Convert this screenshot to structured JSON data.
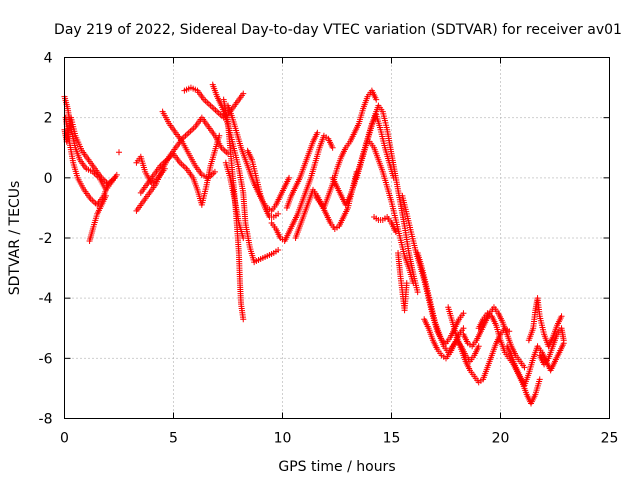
{
  "chart_data": {
    "type": "scatter",
    "title": "Day 219 of 2022, Sidereal Day-to-day VTEC variation (SDTVAR) for receiver av01",
    "xlabel": "GPS time / hours",
    "ylabel": "SDTVAR / TECUs",
    "xlim": [
      0,
      25
    ],
    "ylim": [
      -8,
      4
    ],
    "xticks": [
      0,
      5,
      10,
      15,
      20,
      25
    ],
    "yticks": [
      -8,
      -6,
      -4,
      -2,
      0,
      2,
      4
    ],
    "xtick_labels": [
      "0",
      "5",
      "10",
      "15",
      "20",
      "25"
    ],
    "ytick_labels": [
      "-8",
      "-6",
      "-4",
      "-2",
      "0",
      "2",
      "4"
    ],
    "grid": true,
    "marker": "plus",
    "color": "#ff0000",
    "tracks": [
      [
        [
          0.0,
          2.7
        ],
        [
          0.15,
          2.3
        ],
        [
          0.3,
          1.6
        ],
        [
          0.5,
          1.0
        ],
        [
          0.7,
          0.6
        ],
        [
          1.0,
          0.3
        ],
        [
          1.3,
          0.2
        ],
        [
          1.6,
          0.0
        ],
        [
          1.9,
          -0.4
        ],
        [
          2.1,
          -0.2
        ],
        [
          2.4,
          0.1
        ]
      ],
      [
        [
          0.05,
          2.0
        ],
        [
          0.2,
          1.3
        ],
        [
          0.4,
          0.5
        ],
        [
          0.6,
          0.0
        ],
        [
          0.9,
          -0.4
        ],
        [
          1.2,
          -0.7
        ],
        [
          1.5,
          -0.9
        ],
        [
          1.8,
          -0.6
        ],
        [
          2.0,
          -0.2
        ],
        [
          2.3,
          0.0
        ]
      ],
      [
        [
          0.0,
          1.6
        ],
        [
          0.1,
          1.2
        ],
        [
          0.3,
          2.0
        ],
        [
          0.5,
          1.4
        ],
        [
          0.8,
          0.9
        ],
        [
          1.1,
          0.6
        ],
        [
          1.4,
          0.3
        ],
        [
          1.7,
          0.0
        ],
        [
          2.0,
          -0.2
        ]
      ],
      [
        [
          1.15,
          -2.1
        ],
        [
          1.3,
          -1.7
        ],
        [
          1.5,
          -1.2
        ],
        [
          1.7,
          -0.9
        ],
        [
          1.9,
          -0.6
        ]
      ],
      [
        [
          3.3,
          -1.1
        ],
        [
          3.6,
          -0.8
        ],
        [
          3.9,
          -0.5
        ],
        [
          4.2,
          -0.2
        ],
        [
          4.5,
          0.3
        ],
        [
          4.8,
          0.7
        ],
        [
          5.1,
          1.0
        ],
        [
          5.4,
          1.3
        ],
        [
          5.7,
          1.5
        ],
        [
          6.0,
          1.7
        ],
        [
          6.3,
          2.0
        ],
        [
          6.6,
          1.7
        ],
        [
          6.9,
          1.4
        ],
        [
          7.2,
          1.0
        ],
        [
          7.5,
          0.8
        ]
      ],
      [
        [
          3.5,
          -0.5
        ],
        [
          3.8,
          -0.2
        ],
        [
          4.1,
          0.1
        ],
        [
          4.4,
          0.4
        ],
        [
          4.7,
          0.6
        ],
        [
          5.0,
          0.8
        ],
        [
          5.3,
          0.5
        ],
        [
          5.6,
          0.3
        ],
        [
          5.9,
          0.0
        ],
        [
          6.1,
          -0.4
        ],
        [
          6.3,
          -0.9
        ],
        [
          6.5,
          -0.3
        ],
        [
          6.7,
          0.4
        ],
        [
          6.9,
          0.9
        ],
        [
          7.1,
          1.4
        ]
      ],
      [
        [
          3.3,
          0.5
        ],
        [
          3.5,
          0.7
        ],
        [
          3.7,
          0.2
        ],
        [
          4.0,
          -0.2
        ],
        [
          4.3,
          0.0
        ],
        [
          4.6,
          0.3
        ]
      ],
      [
        [
          4.5,
          2.2
        ],
        [
          4.8,
          1.8
        ],
        [
          5.1,
          1.5
        ],
        [
          5.4,
          1.2
        ],
        [
          5.7,
          0.8
        ],
        [
          6.0,
          0.4
        ],
        [
          6.3,
          0.1
        ],
        [
          6.6,
          0.0
        ],
        [
          6.9,
          0.2
        ]
      ],
      [
        [
          5.5,
          2.9
        ],
        [
          5.8,
          3.0
        ],
        [
          6.1,
          2.9
        ],
        [
          6.4,
          2.6
        ],
        [
          6.7,
          2.4
        ],
        [
          7.0,
          2.2
        ],
        [
          7.3,
          2.0
        ],
        [
          7.6,
          2.2
        ],
        [
          7.9,
          2.5
        ],
        [
          8.2,
          2.8
        ]
      ],
      [
        [
          6.8,
          3.1
        ],
        [
          7.0,
          2.7
        ],
        [
          7.2,
          2.4
        ],
        [
          7.4,
          2.0
        ],
        [
          7.6,
          1.5
        ],
        [
          7.8,
          0.9
        ],
        [
          8.0,
          0.3
        ],
        [
          8.2,
          -0.5
        ],
        [
          8.3,
          -1.5
        ],
        [
          8.5,
          -2.3
        ],
        [
          8.7,
          -2.8
        ],
        [
          9.0,
          -2.7
        ],
        [
          9.3,
          -2.6
        ],
        [
          9.6,
          -2.5
        ],
        [
          9.8,
          -2.4
        ]
      ],
      [
        [
          7.3,
          2.6
        ],
        [
          7.5,
          1.8
        ],
        [
          7.6,
          1.0
        ],
        [
          7.7,
          0.2
        ],
        [
          7.8,
          -0.6
        ],
        [
          7.9,
          -1.5
        ],
        [
          8.0,
          -2.5
        ],
        [
          8.05,
          -3.5
        ],
        [
          8.1,
          -4.2
        ],
        [
          8.2,
          -4.7
        ]
      ],
      [
        [
          7.4,
          0.5
        ],
        [
          7.6,
          0.0
        ],
        [
          7.8,
          -0.7
        ],
        [
          8.0,
          -1.5
        ],
        [
          8.2,
          -2.0
        ]
      ],
      [
        [
          7.5,
          2.4
        ],
        [
          7.7,
          2.0
        ],
        [
          7.9,
          1.5
        ],
        [
          8.1,
          1.0
        ],
        [
          8.3,
          0.6
        ],
        [
          8.5,
          0.2
        ],
        [
          8.7,
          -0.2
        ],
        [
          8.9,
          -0.5
        ],
        [
          9.1,
          -0.8
        ],
        [
          9.3,
          -1.0
        ],
        [
          9.5,
          -1.1
        ],
        [
          9.7,
          -0.9
        ],
        [
          9.9,
          -0.6
        ],
        [
          10.1,
          -0.3
        ],
        [
          10.3,
          0.0
        ]
      ],
      [
        [
          8.4,
          0.9
        ],
        [
          8.6,
          0.6
        ],
        [
          8.8,
          0.0
        ],
        [
          9.0,
          -0.6
        ],
        [
          9.2,
          -1.0
        ],
        [
          9.4,
          -1.3
        ],
        [
          9.6,
          -1.3
        ],
        [
          9.8,
          -1.2
        ]
      ],
      [
        [
          9.5,
          -1.5
        ],
        [
          9.7,
          -1.7
        ],
        [
          9.9,
          -2.0
        ],
        [
          10.1,
          -2.1
        ],
        [
          10.3,
          -1.8
        ],
        [
          10.5,
          -1.5
        ],
        [
          10.7,
          -1.2
        ],
        [
          10.9,
          -0.8
        ],
        [
          11.1,
          -0.4
        ],
        [
          11.3,
          0.0
        ],
        [
          11.5,
          0.5
        ],
        [
          11.7,
          1.0
        ],
        [
          11.9,
          1.4
        ],
        [
          12.1,
          1.3
        ],
        [
          12.3,
          1.0
        ]
      ],
      [
        [
          10.2,
          -1.0
        ],
        [
          10.4,
          -0.6
        ],
        [
          10.6,
          -0.3
        ],
        [
          10.8,
          0.0
        ],
        [
          11.0,
          0.4
        ],
        [
          11.2,
          0.8
        ],
        [
          11.4,
          1.2
        ],
        [
          11.6,
          1.5
        ]
      ],
      [
        [
          10.6,
          -2.0
        ],
        [
          10.8,
          -1.6
        ],
        [
          11.0,
          -1.2
        ],
        [
          11.2,
          -0.8
        ],
        [
          11.4,
          -0.4
        ],
        [
          11.6,
          -0.6
        ],
        [
          11.8,
          -0.9
        ],
        [
          12.0,
          -1.2
        ],
        [
          12.2,
          -1.5
        ],
        [
          12.4,
          -1.7
        ],
        [
          12.6,
          -1.6
        ],
        [
          12.8,
          -1.3
        ],
        [
          13.0,
          -1.0
        ],
        [
          13.2,
          -0.4
        ],
        [
          13.4,
          0.2
        ]
      ],
      [
        [
          11.5,
          -0.6
        ],
        [
          11.7,
          -0.8
        ],
        [
          11.9,
          -1.0
        ],
        [
          12.1,
          -0.6
        ],
        [
          12.3,
          -0.2
        ],
        [
          12.5,
          0.3
        ],
        [
          12.7,
          0.7
        ],
        [
          12.9,
          1.0
        ],
        [
          13.1,
          1.2
        ],
        [
          13.3,
          1.5
        ],
        [
          13.5,
          1.8
        ],
        [
          13.7,
          2.3
        ],
        [
          13.9,
          2.7
        ],
        [
          14.1,
          2.9
        ],
        [
          14.3,
          2.6
        ]
      ],
      [
        [
          12.3,
          0.0
        ],
        [
          12.5,
          -0.3
        ],
        [
          12.7,
          -0.6
        ],
        [
          12.9,
          -0.9
        ],
        [
          13.1,
          -0.6
        ],
        [
          13.3,
          -0.2
        ],
        [
          13.5,
          0.3
        ],
        [
          13.7,
          0.8
        ],
        [
          13.9,
          1.3
        ],
        [
          14.1,
          1.8
        ],
        [
          14.3,
          2.1
        ],
        [
          14.5,
          1.6
        ],
        [
          14.7,
          1.0
        ],
        [
          14.9,
          0.5
        ],
        [
          15.1,
          0.0
        ]
      ],
      [
        [
          13.4,
          0.0
        ],
        [
          13.6,
          0.5
        ],
        [
          13.8,
          1.0
        ],
        [
          14.0,
          1.5
        ],
        [
          14.2,
          2.0
        ],
        [
          14.4,
          2.4
        ],
        [
          14.6,
          2.2
        ],
        [
          14.8,
          1.6
        ],
        [
          15.0,
          0.8
        ],
        [
          15.2,
          0.0
        ],
        [
          15.4,
          -0.8
        ],
        [
          15.6,
          -1.6
        ],
        [
          15.8,
          -2.5
        ],
        [
          16.0,
          -3.2
        ],
        [
          16.2,
          -3.8
        ]
      ],
      [
        [
          14.0,
          1.2
        ],
        [
          14.2,
          1.0
        ],
        [
          14.4,
          0.6
        ],
        [
          14.6,
          0.2
        ],
        [
          14.8,
          -0.3
        ],
        [
          15.0,
          -0.8
        ],
        [
          15.2,
          -1.4
        ],
        [
          15.4,
          -2.0
        ],
        [
          15.6,
          -2.6
        ],
        [
          15.8,
          -3.0
        ],
        [
          16.0,
          -3.5
        ]
      ],
      [
        [
          14.2,
          -1.3
        ],
        [
          14.4,
          -1.4
        ],
        [
          14.6,
          -1.4
        ],
        [
          14.8,
          -1.3
        ],
        [
          15.0,
          -1.5
        ],
        [
          15.2,
          -1.8
        ]
      ],
      [
        [
          15.3,
          -2.5
        ],
        [
          15.4,
          -3.2
        ],
        [
          15.5,
          -3.8
        ],
        [
          15.6,
          -4.4
        ],
        [
          15.7,
          -3.5
        ]
      ],
      [
        [
          15.5,
          -0.6
        ],
        [
          15.7,
          -1.2
        ],
        [
          15.9,
          -1.8
        ],
        [
          16.1,
          -2.4
        ],
        [
          16.3,
          -2.9
        ],
        [
          16.5,
          -3.4
        ],
        [
          16.7,
          -4.0
        ],
        [
          16.9,
          -4.6
        ],
        [
          17.1,
          -5.1
        ],
        [
          17.3,
          -5.4
        ],
        [
          17.5,
          -5.5
        ],
        [
          17.7,
          -5.3
        ],
        [
          17.9,
          -5.0
        ],
        [
          18.1,
          -4.7
        ],
        [
          18.3,
          -4.5
        ]
      ],
      [
        [
          16.2,
          -2.5
        ],
        [
          16.4,
          -3.0
        ],
        [
          16.6,
          -3.6
        ],
        [
          16.8,
          -4.2
        ],
        [
          17.0,
          -4.8
        ],
        [
          17.2,
          -5.2
        ],
        [
          17.4,
          -5.6
        ],
        [
          17.6,
          -5.8
        ],
        [
          17.8,
          -5.6
        ],
        [
          18.0,
          -5.4
        ],
        [
          18.2,
          -5.6
        ],
        [
          18.4,
          -5.9
        ],
        [
          18.6,
          -6.1
        ],
        [
          18.8,
          -5.9
        ],
        [
          19.0,
          -5.6
        ]
      ],
      [
        [
          16.5,
          -4.7
        ],
        [
          16.7,
          -5.0
        ],
        [
          16.9,
          -5.4
        ],
        [
          17.1,
          -5.7
        ],
        [
          17.3,
          -5.9
        ],
        [
          17.5,
          -6.0
        ],
        [
          17.7,
          -5.8
        ],
        [
          17.9,
          -5.5
        ],
        [
          18.1,
          -5.2
        ],
        [
          18.3,
          -5.0
        ]
      ],
      [
        [
          17.6,
          -4.3
        ],
        [
          17.8,
          -4.8
        ],
        [
          18.0,
          -5.3
        ],
        [
          18.2,
          -5.7
        ],
        [
          18.4,
          -6.1
        ],
        [
          18.6,
          -6.4
        ],
        [
          18.8,
          -6.6
        ],
        [
          19.0,
          -6.8
        ],
        [
          19.2,
          -6.7
        ],
        [
          19.4,
          -6.3
        ],
        [
          19.6,
          -5.9
        ],
        [
          19.8,
          -5.5
        ],
        [
          20.0,
          -5.2
        ],
        [
          20.2,
          -5.0
        ],
        [
          20.4,
          -5.1
        ]
      ],
      [
        [
          18.3,
          -5.2
        ],
        [
          18.5,
          -5.5
        ],
        [
          18.7,
          -5.6
        ],
        [
          18.9,
          -5.4
        ],
        [
          19.1,
          -5.1
        ],
        [
          19.3,
          -4.8
        ],
        [
          19.5,
          -4.5
        ],
        [
          19.7,
          -4.3
        ],
        [
          19.9,
          -4.5
        ],
        [
          20.1,
          -4.8
        ],
        [
          20.3,
          -5.2
        ],
        [
          20.5,
          -5.6
        ],
        [
          20.7,
          -5.9
        ],
        [
          20.9,
          -6.1
        ],
        [
          21.1,
          -6.3
        ]
      ],
      [
        [
          19.0,
          -5.0
        ],
        [
          19.2,
          -4.7
        ],
        [
          19.4,
          -4.5
        ],
        [
          19.6,
          -4.6
        ],
        [
          19.8,
          -4.9
        ],
        [
          20.0,
          -5.4
        ],
        [
          20.2,
          -5.8
        ],
        [
          20.4,
          -6.0
        ],
        [
          20.6,
          -6.2
        ],
        [
          20.8,
          -6.5
        ],
        [
          21.0,
          -6.8
        ],
        [
          21.2,
          -7.2
        ],
        [
          21.4,
          -7.5
        ],
        [
          21.6,
          -7.2
        ],
        [
          21.8,
          -6.7
        ]
      ],
      [
        [
          20.3,
          -5.6
        ],
        [
          20.5,
          -5.9
        ],
        [
          20.7,
          -6.3
        ],
        [
          20.9,
          -6.6
        ],
        [
          21.1,
          -6.9
        ],
        [
          21.3,
          -6.5
        ],
        [
          21.5,
          -6.0
        ],
        [
          21.7,
          -5.6
        ],
        [
          21.9,
          -5.8
        ],
        [
          22.1,
          -6.1
        ],
        [
          22.3,
          -6.4
        ],
        [
          22.5,
          -6.1
        ],
        [
          22.7,
          -5.8
        ],
        [
          22.9,
          -5.5
        ]
      ],
      [
        [
          21.3,
          -5.4
        ],
        [
          21.5,
          -5.0
        ],
        [
          21.6,
          -4.4
        ],
        [
          21.7,
          -4.0
        ],
        [
          21.8,
          -4.6
        ],
        [
          22.0,
          -5.2
        ],
        [
          22.2,
          -5.6
        ],
        [
          22.4,
          -5.3
        ],
        [
          22.6,
          -4.9
        ],
        [
          22.8,
          -4.6
        ]
      ],
      [
        [
          21.8,
          -5.9
        ],
        [
          22.0,
          -6.2
        ],
        [
          22.2,
          -6.0
        ],
        [
          22.4,
          -5.6
        ],
        [
          22.6,
          -5.2
        ],
        [
          22.8,
          -5.0
        ],
        [
          22.9,
          -5.4
        ]
      ],
      [
        [
          2.5,
          0.85
        ]
      ]
    ]
  }
}
